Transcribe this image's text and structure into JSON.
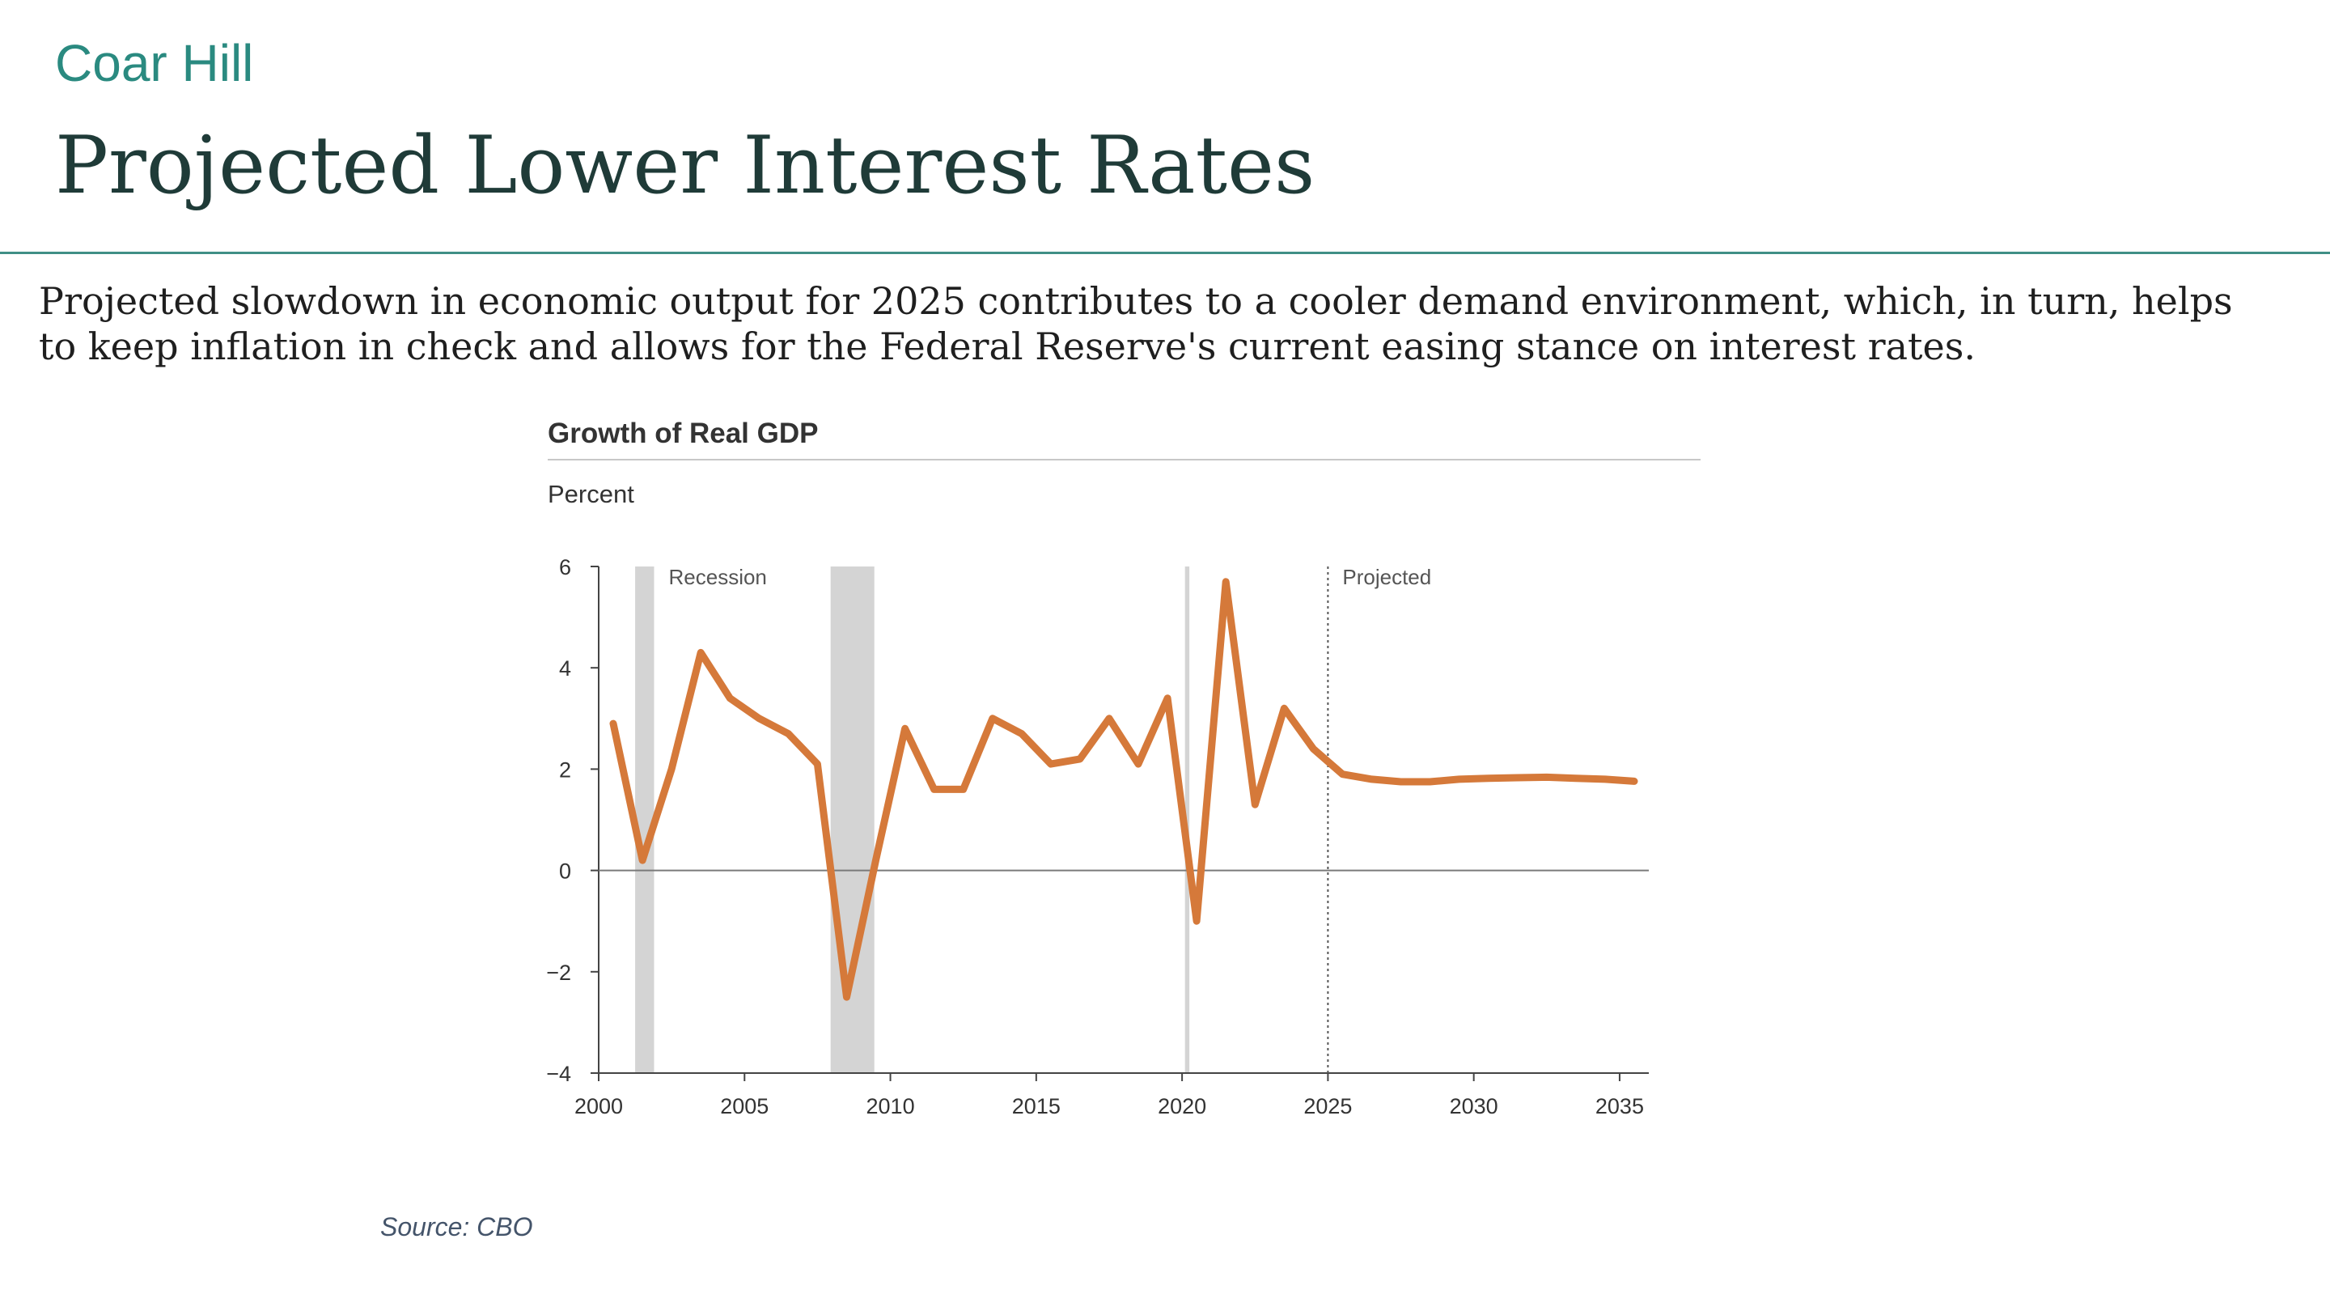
{
  "header": {
    "brand": "Coar Hill",
    "title": "Projected Lower Interest Rates"
  },
  "body_text": "Projected slowdown in economic output for 2025 contributes to a cooler demand environment, which, in turn, helps to keep inflation in check and allows for the Federal Reserve's current easing stance on interest rates.",
  "source": "Source: CBO",
  "colors": {
    "brand": "#2a8a80",
    "title": "#1f3b38",
    "divider": "#3f8f86",
    "line": "#d5793a",
    "recession": "#d4d4d4",
    "axis": "#444444",
    "text": "#333333"
  },
  "chart_data": {
    "type": "line",
    "title": "Growth of Real GDP",
    "ylabel": "Percent",
    "xlabel": "",
    "xlim": [
      2000,
      2036
    ],
    "ylim": [
      -4,
      6
    ],
    "xticks": [
      2000,
      2005,
      2010,
      2015,
      2020,
      2025,
      2030,
      2035
    ],
    "yticks": [
      -4,
      -2,
      0,
      2,
      4,
      6
    ],
    "ytick_labels": [
      "−4",
      "−2",
      "0",
      "2",
      "4",
      "6"
    ],
    "grid": false,
    "recessions": [
      {
        "start": 2001.25,
        "end": 2001.9
      },
      {
        "start": 2007.95,
        "end": 2009.45
      },
      {
        "start": 2020.1,
        "end": 2020.25
      }
    ],
    "annotations": {
      "recession_label": "Recession",
      "projected_label": "Projected",
      "projected_start": 2025
    },
    "x": [
      2000.5,
      2001.5,
      2002.5,
      2003.5,
      2004.5,
      2005.5,
      2006.5,
      2007.5,
      2008.5,
      2009.5,
      2010.5,
      2011.5,
      2012.5,
      2013.5,
      2014.5,
      2015.5,
      2016.5,
      2017.5,
      2018.5,
      2019.5,
      2020.5,
      2021.5,
      2022.5,
      2023.5,
      2024.5,
      2025.5,
      2026.5,
      2027.5,
      2028.5,
      2029.5,
      2030.5,
      2031.5,
      2032.5,
      2033.5,
      2034.5,
      2035.5
    ],
    "series": [
      {
        "values": [
          2.9,
          0.2,
          2.0,
          4.3,
          3.4,
          3.0,
          2.7,
          2.1,
          -2.5,
          0.2,
          2.8,
          1.6,
          1.6,
          3.0,
          2.7,
          2.1,
          2.2,
          3.0,
          2.1,
          3.4,
          -1.0,
          5.7,
          1.3,
          3.2,
          2.4,
          1.9,
          1.8,
          1.75,
          1.75,
          1.8,
          1.82,
          1.83,
          1.84,
          1.82,
          1.8,
          1.76
        ]
      }
    ]
  }
}
